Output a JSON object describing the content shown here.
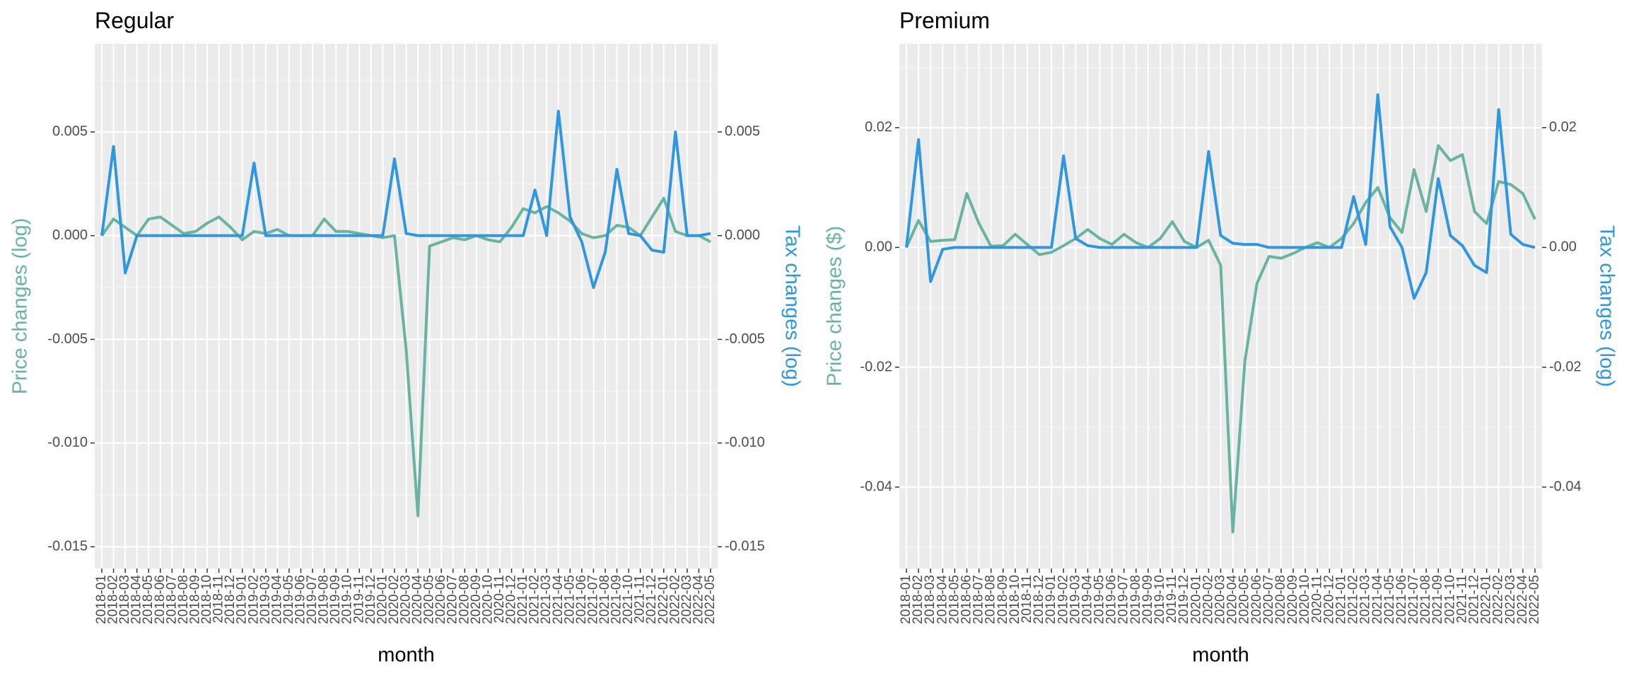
{
  "chart_data": [
    {
      "type": "line",
      "title": "Regular",
      "xlabel": "month",
      "ylabel": "Price changes (log)",
      "y2label": "Tax changes (log)",
      "categories": [
        "2018-01",
        "2018-02",
        "2018-03",
        "2018-04",
        "2018-05",
        "2018-06",
        "2018-07",
        "2018-08",
        "2018-09",
        "2018-10",
        "2018-11",
        "2018-12",
        "2019-01",
        "2019-02",
        "2019-03",
        "2019-04",
        "2019-05",
        "2019-06",
        "2019-07",
        "2019-08",
        "2019-09",
        "2019-10",
        "2019-11",
        "2019-12",
        "2020-01",
        "2020-02",
        "2020-03",
        "2020-04",
        "2020-05",
        "2020-06",
        "2020-07",
        "2020-08",
        "2020-09",
        "2020-10",
        "2020-11",
        "2020-12",
        "2021-01",
        "2021-02",
        "2021-03",
        "2021-04",
        "2021-05",
        "2021-06",
        "2021-07",
        "2021-08",
        "2021-09",
        "2021-10",
        "2021-11",
        "2021-12",
        "2022-01",
        "2022-02",
        "2022-03",
        "2022-04",
        "2022-05"
      ],
      "series": [
        {
          "color": "#69b3a2",
          "values": [
            0,
            0.0008,
            0.0004,
            0,
            0.0008,
            0.0009,
            0.0005,
            0.0001,
            0.0002,
            0.0006,
            0.0009,
            0.0004,
            -0.0002,
            0.0002,
            0.0001,
            0.0003,
            0,
            0,
            0,
            0.0008,
            0.0002,
            0.0002,
            0.0001,
            0,
            -0.0001,
            0,
            -0.0055,
            -0.0135,
            -0.0005,
            -0.0003,
            -0.0001,
            -0.0002,
            0,
            -0.0002,
            -0.0003,
            0.0004,
            0.0013,
            0.0011,
            0.0014,
            0.0011,
            0.0007,
            0.0001,
            -0.0001,
            0,
            0.0005,
            0.0004,
            0,
            0.0009,
            0.0018,
            0.0002,
            0,
            0,
            -0.0003
          ]
        },
        {
          "color": "#2f96e0",
          "axis": "y2",
          "values": [
            0,
            0.0043,
            -0.0018,
            0,
            0,
            0,
            0,
            0,
            0,
            0,
            0,
            0,
            0,
            0.0035,
            0,
            0,
            0,
            0,
            0,
            0,
            0,
            0,
            0,
            0,
            0,
            0.0037,
            0.0001,
            0,
            0,
            0,
            0,
            0,
            0,
            0,
            0,
            0,
            0,
            0.0022,
            0,
            0.006,
            0.0009,
            -0.0003,
            -0.0025,
            -0.0008,
            0.0032,
            0.0001,
            0,
            -0.0007,
            -0.0008,
            0.005,
            0,
            0,
            0.0001
          ]
        }
      ],
      "ylim": [
        -0.01605,
        0.00925
      ],
      "yticks": [
        {
          "value": -0.015,
          "label": "-0.015"
        },
        {
          "value": -0.01,
          "label": "-0.010"
        },
        {
          "value": -0.005,
          "label": "-0.005"
        },
        {
          "value": 0,
          "label": "0.000"
        },
        0.005
      ],
      "y2lim": [
        -0.01605,
        0.00925
      ],
      "y2ticks": [
        {
          "value": -0.015,
          "label": "-0.015"
        },
        {
          "value": -0.01,
          "label": "-0.010"
        },
        {
          "value": -0.005,
          "label": "-0.005"
        },
        {
          "value": 0,
          "label": "0.000"
        },
        0.005
      ],
      "grid": true
    },
    {
      "type": "line",
      "title": "Premium",
      "xlabel": "month",
      "ylabel": "Price changes ($)",
      "y2label": "Tax changes (log)",
      "categories": [
        "2018-01",
        "2018-02",
        "2018-03",
        "2018-04",
        "2018-05",
        "2018-06",
        "2018-07",
        "2018-08",
        "2018-09",
        "2018-10",
        "2018-11",
        "2018-12",
        "2019-01",
        "2019-02",
        "2019-03",
        "2019-04",
        "2019-05",
        "2019-06",
        "2019-07",
        "2019-08",
        "2019-09",
        "2019-10",
        "2019-11",
        "2019-12",
        "2020-01",
        "2020-02",
        "2020-03",
        "2020-04",
        "2020-05",
        "2020-06",
        "2020-07",
        "2020-08",
        "2020-09",
        "2020-10",
        "2020-11",
        "2020-12",
        "2021-01",
        "2021-02",
        "2021-03",
        "2021-04",
        "2021-05",
        "2021-06",
        "2021-07",
        "2021-08",
        "2021-09",
        "2021-10",
        "2021-11",
        "2021-12",
        "2022-01",
        "2022-02",
        "2022-03",
        "2022-04",
        "2022-05"
      ],
      "series": [
        {
          "color": "#69b3a2",
          "values": [
            0,
            0.0045,
            0.001,
            0.0012,
            0.0013,
            0.009,
            0.004,
            0.0002,
            0.0003,
            0.0022,
            0.0005,
            -0.0012,
            -0.0008,
            0.0003,
            0.0015,
            0.003,
            0.0015,
            0.0005,
            0.0022,
            0.0008,
            0,
            0.0015,
            0.0043,
            0.001,
            0,
            0.0012,
            -0.003,
            -0.0475,
            -0.019,
            -0.006,
            -0.0015,
            -0.0018,
            -0.001,
            0,
            0.0008,
            0,
            0.0015,
            0.004,
            0.0075,
            0.01,
            0.005,
            0.0025,
            0.013,
            0.006,
            0.017,
            0.0145,
            0.0155,
            0.006,
            0.004,
            0.011,
            0.0105,
            0.009,
            0.0047
          ]
        },
        {
          "color": "#2f96e0",
          "axis": "y2",
          "values": [
            0,
            0.018,
            -0.0057,
            -0.0003,
            0,
            0,
            0,
            0,
            0,
            0,
            0,
            0,
            0,
            0.0153,
            0.0015,
            0.0003,
            0,
            0,
            0,
            0,
            0,
            0,
            0,
            0,
            0,
            0.016,
            0.002,
            0.0007,
            0.0005,
            0.0005,
            0,
            0,
            0,
            0,
            0,
            0,
            0,
            0.0085,
            0.0005,
            0.0255,
            0.0035,
            0,
            -0.0085,
            -0.0042,
            0.0115,
            0.002,
            0.0003,
            -0.003,
            -0.0042,
            0.023,
            0.0022,
            0.0005,
            0
          ]
        }
      ],
      "ylim": [
        -0.0536,
        0.034
      ],
      "yticks": [
        -0.04,
        -0.02,
        {
          "value": 0,
          "label": "0.00"
        },
        0.02
      ],
      "y2lim": [
        -0.0536,
        0.034
      ],
      "y2ticks": [
        -0.04,
        -0.02,
        {
          "value": 0,
          "label": "0.00"
        },
        0.02
      ],
      "grid": true
    }
  ]
}
